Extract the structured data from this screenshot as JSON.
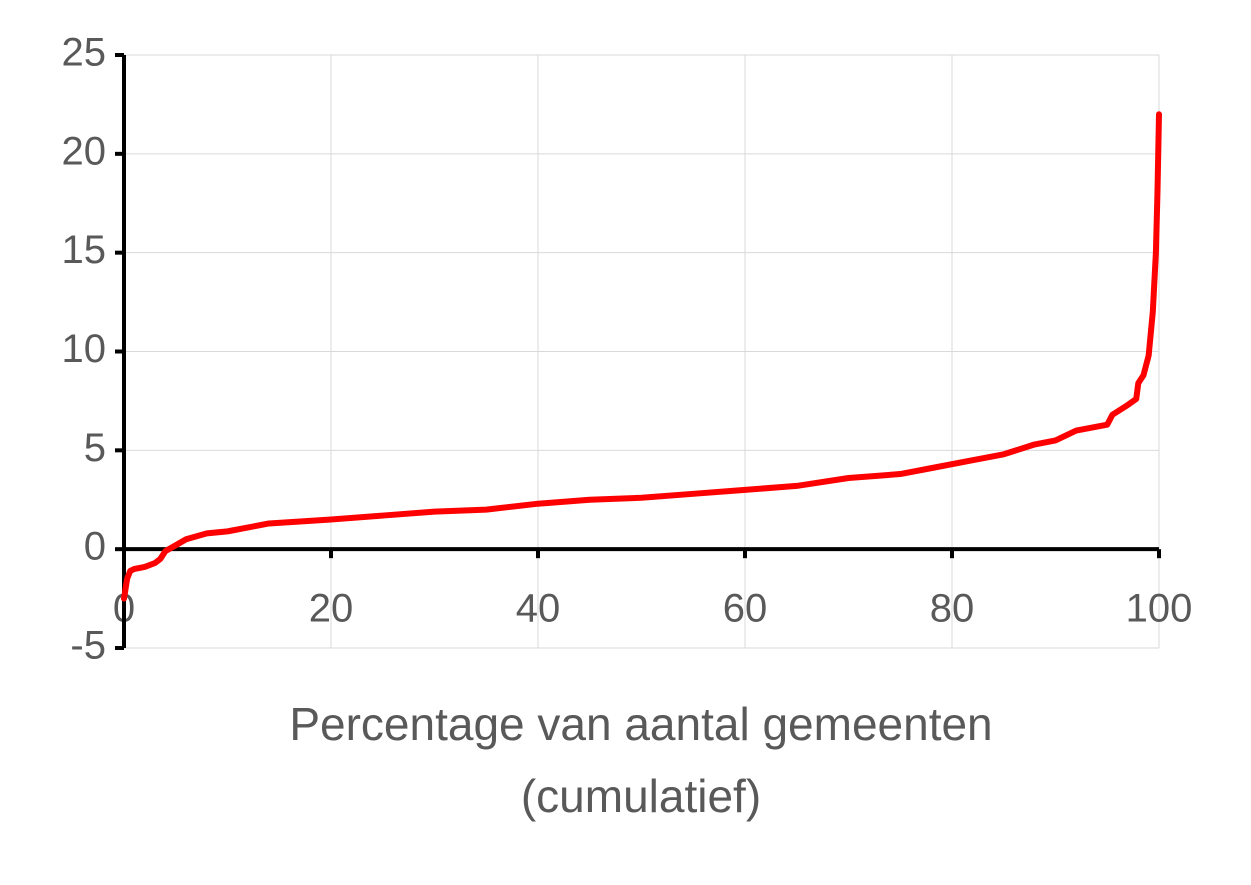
{
  "chart_data": {
    "type": "line",
    "x_label": [
      "Percentage van aantal gemeenten",
      "(cumulatief)"
    ],
    "xlim": [
      0,
      100
    ],
    "xticks": [
      0,
      20,
      40,
      60,
      80,
      100
    ],
    "ylim": [
      -5,
      25
    ],
    "yticks": [
      -5,
      0,
      5,
      10,
      15,
      20,
      25
    ],
    "grid": true,
    "series": [
      {
        "color": "#ff0000",
        "x": [
          0,
          0.3,
          0.6,
          1,
          2,
          3,
          3.5,
          4,
          5,
          6,
          8,
          10,
          12,
          14,
          17,
          20,
          25,
          30,
          35,
          40,
          45,
          50,
          55,
          60,
          65,
          70,
          75,
          78,
          82,
          85,
          88,
          90,
          92,
          95,
          95.5,
          97,
          97.8,
          98,
          98.5,
          99,
          99.4,
          99.7,
          99.85,
          100
        ],
        "values": [
          -2.5,
          -1.5,
          -1.1,
          -1.0,
          -0.9,
          -0.7,
          -0.5,
          -0.1,
          0.2,
          0.5,
          0.8,
          0.9,
          1.1,
          1.3,
          1.4,
          1.5,
          1.7,
          1.9,
          2.0,
          2.3,
          2.5,
          2.6,
          2.8,
          3.0,
          3.2,
          3.6,
          3.8,
          4.1,
          4.5,
          4.8,
          5.3,
          5.5,
          6.0,
          6.3,
          6.8,
          7.3,
          7.6,
          8.4,
          8.8,
          9.8,
          12,
          15,
          18,
          22
        ]
      }
    ]
  }
}
